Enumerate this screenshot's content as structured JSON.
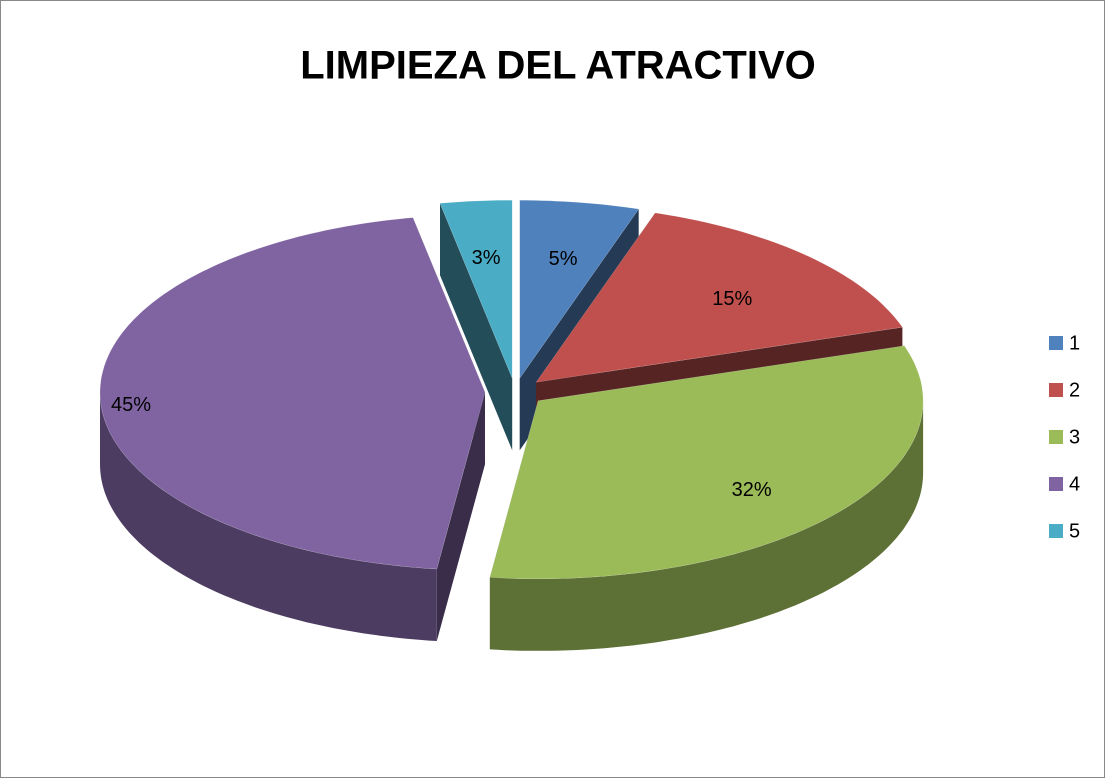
{
  "chart_data": {
    "type": "pie3d",
    "title": "LIMPIEZA DEL ATRACTIVO",
    "categories": [
      "1",
      "2",
      "3",
      "4",
      "5"
    ],
    "values": [
      5,
      15,
      32,
      45,
      3
    ],
    "value_labels": [
      "5%",
      "15%",
      "32%",
      "45%",
      "3%"
    ],
    "colors": [
      "#4f81bd",
      "#c0504d",
      "#9bbb59",
      "#8064a2",
      "#4bacc6"
    ],
    "legend": "right"
  }
}
